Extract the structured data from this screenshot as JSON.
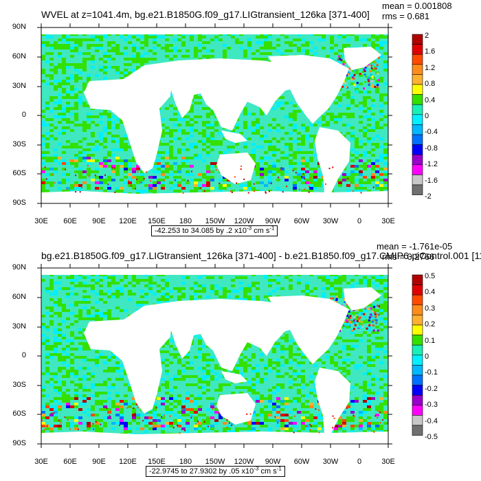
{
  "panels": [
    {
      "title": "WVEL at z=1041.4m, bg.e21.B1850G.f09_g17.LIGtransient_126ka [371-400]",
      "mean": "mean = 0.001808",
      "rms": "rms = 0.681",
      "range_prefix": "-42.253 to 34.085 by .2 x10",
      "range_unit": " cm s",
      "colorbar_labels": [
        "2",
        "1.6",
        "1.2",
        "0.8",
        "0.4",
        "0",
        "-0.4",
        "-0.8",
        "-1.2",
        "-1.6",
        "-2"
      ]
    },
    {
      "title": "bg.e21.B1850G.f09_g17.LIGtransient_126ka [371-400] - b.e21.B1850.f09_g17.CMIP6-piControl.001 [11",
      "mean": "mean = -1.761e-05",
      "rms": "rms = 0.2766",
      "range_prefix": "-22.9745 to 27.9302 by .05 x10",
      "range_unit": " cm s",
      "colorbar_labels": [
        "0.5",
        "0.4",
        "0.3",
        "0.2",
        "0.1",
        "0",
        "-0.1",
        "-0.2",
        "-0.3",
        "-0.4",
        "-0.5"
      ]
    }
  ],
  "exponent": "-3",
  "unit_exponent": "-1",
  "lat_labels": [
    "90N",
    "60N",
    "30N",
    "0",
    "30S",
    "60S",
    "90S"
  ],
  "lon_labels": [
    "30E",
    "60E",
    "90E",
    "120E",
    "150E",
    "180",
    "150W",
    "120W",
    "90W",
    "60W",
    "30W",
    "0",
    "30E"
  ],
  "colors": {
    "ocean_base": "#3fe8c0",
    "land": "#ffffff",
    "palette": [
      "#b00000",
      "#e00000",
      "#ff4a00",
      "#ff8c1a",
      "#ffb030",
      "#ffff00",
      "#33e000",
      "#18f0b8",
      "#00f0ff",
      "#00b8ff",
      "#0070ff",
      "#0000ff",
      "#9a00cc",
      "#ff00ff",
      "#c8c8c8",
      "#707070"
    ]
  }
}
